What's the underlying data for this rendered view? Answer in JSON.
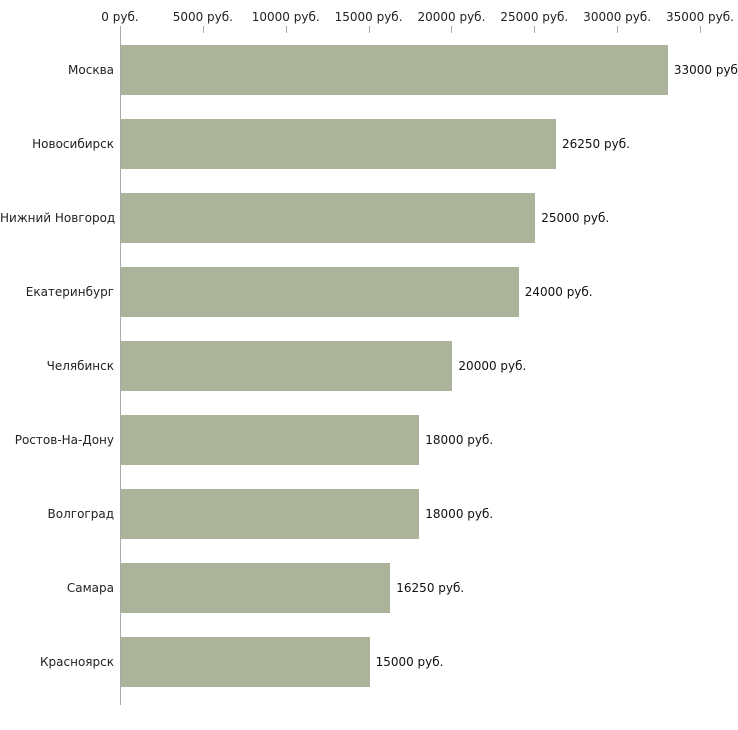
{
  "chart_data": {
    "type": "bar",
    "orientation": "horizontal",
    "title": "",
    "xlabel": "",
    "ylabel": "",
    "categories": [
      "Москва",
      "Новосибирск",
      "Нижний Новгород",
      "Екатеринбург",
      "Челябинск",
      "Ростов-На-Дону",
      "Волгоград",
      "Самара",
      "Красноярск"
    ],
    "values": [
      33000,
      26250,
      25000,
      24000,
      20000,
      18000,
      18000,
      16250,
      15000
    ],
    "value_labels": [
      "33000 руб",
      "26250 руб.",
      "25000 руб.",
      "24000 руб.",
      "20000 руб.",
      "18000 руб.",
      "18000 руб.",
      "16250 руб.",
      "15000 руб."
    ],
    "x_ticks": [
      "0 руб.",
      "5000 руб.",
      "10000 руб.",
      "15000 руб.",
      "20000 руб.",
      "25000 руб.",
      "30000 руб.",
      "35000 руб."
    ],
    "x_tick_values": [
      0,
      5000,
      10000,
      15000,
      20000,
      25000,
      30000,
      35000
    ],
    "xlim": [
      0,
      35000
    ],
    "grid": false,
    "legend": "none",
    "bar_color": "#abb49a",
    "axis_color": "#aaaaaa",
    "text_color": "#222222"
  }
}
